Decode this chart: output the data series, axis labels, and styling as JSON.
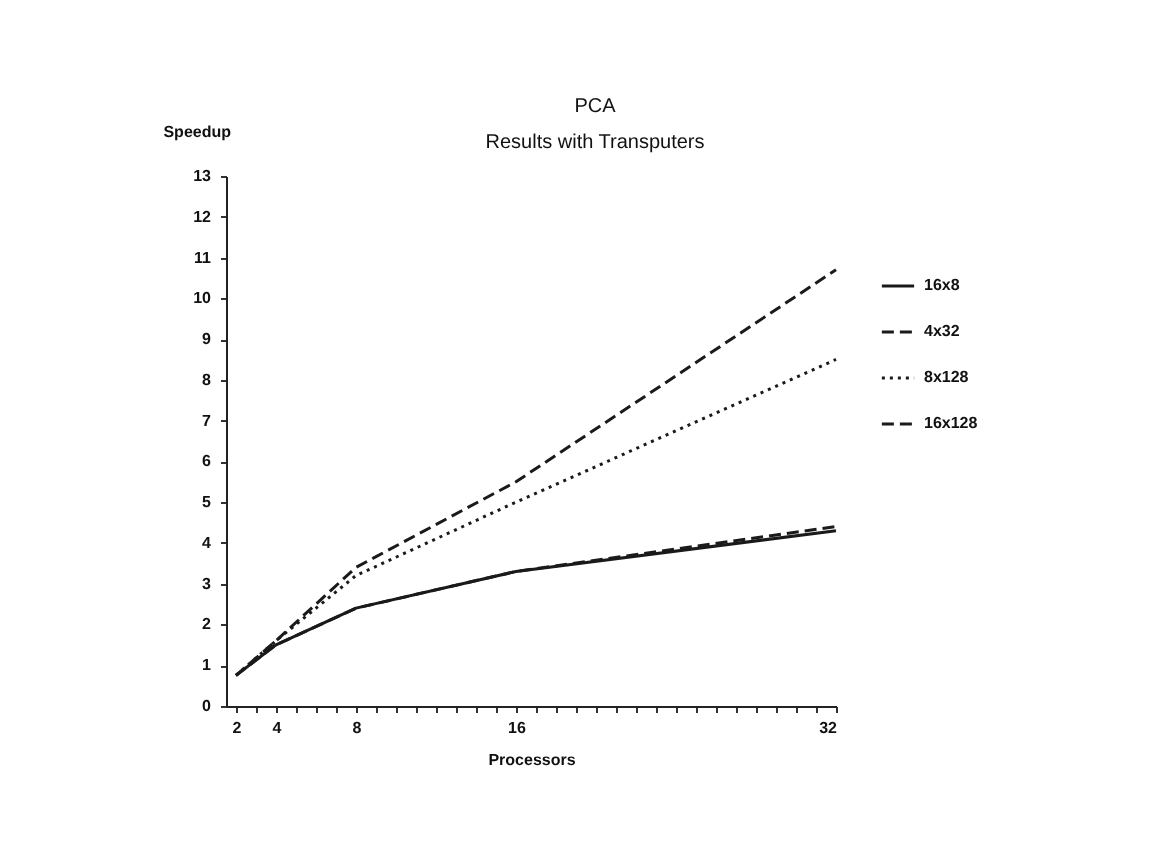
{
  "chart_data": {
    "type": "line",
    "title": "PCA",
    "subtitle": "Results with Transputers",
    "xlabel": "Processors",
    "ylabel": "Speedup",
    "x": [
      2,
      4,
      8,
      16,
      32
    ],
    "xlim": [
      1.5,
      32
    ],
    "xticks": [
      2,
      {
        "value": 3,
        "label": null
      },
      4,
      {
        "value": 5,
        "label": null
      },
      {
        "value": 6,
        "label": null
      },
      {
        "value": 7,
        "label": null
      },
      8,
      {
        "value": 9,
        "label": null
      },
      {
        "value": 10,
        "label": null
      },
      {
        "value": 11,
        "label": null
      },
      {
        "value": 12,
        "label": null
      },
      {
        "value": 13,
        "label": null
      },
      {
        "value": 14,
        "label": null
      },
      {
        "value": 15,
        "label": null
      },
      16,
      {
        "value": 17,
        "label": null
      },
      {
        "value": 18,
        "label": null
      },
      {
        "value": 19,
        "label": null
      },
      {
        "value": 20,
        "label": null
      },
      {
        "value": 21,
        "label": null
      },
      {
        "value": 22,
        "label": null
      },
      {
        "value": 23,
        "label": null
      },
      {
        "value": 24,
        "label": null
      },
      {
        "value": 25,
        "label": null
      },
      {
        "value": 26,
        "label": null
      },
      {
        "value": 27,
        "label": null
      },
      {
        "value": 28,
        "label": null
      },
      {
        "value": 29,
        "label": null
      },
      {
        "value": 30,
        "label": null
      },
      {
        "value": 31,
        "label": null
      },
      32
    ],
    "ylim": [
      0,
      13
    ],
    "yticks": [
      0,
      1,
      2,
      3,
      4,
      5,
      6,
      7,
      8,
      9,
      10,
      11,
      12,
      13
    ],
    "series": [
      {
        "name": "16x8",
        "color": "#1a1a1a",
        "line_style": "solid",
        "values": [
          0.75,
          1.5,
          2.4,
          3.3,
          4.3
        ]
      },
      {
        "name": "4x32",
        "color": "#1a1a1a",
        "line_style": "dashed",
        "values": [
          0.75,
          1.5,
          2.4,
          3.3,
          4.4
        ]
      },
      {
        "name": "8x128",
        "color": "#1a1a1a",
        "line_style": "dotted",
        "values": [
          0.75,
          1.6,
          3.2,
          5.0,
          8.5
        ]
      },
      {
        "name": "16x128",
        "color": "#1a1a1a",
        "line_style": "dashed",
        "values": [
          0.75,
          1.6,
          3.4,
          5.5,
          10.7
        ]
      }
    ],
    "legend": "top right",
    "grid": false
  }
}
